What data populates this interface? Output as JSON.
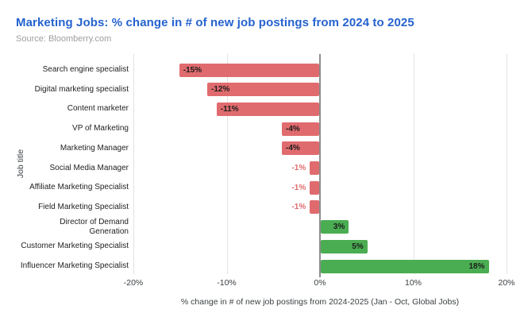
{
  "header": {
    "title": "Marketing Jobs: % change in # of new job postings from 2024 to 2025",
    "source": "Source: Bloomberry.com"
  },
  "chart_data": {
    "type": "bar",
    "orientation": "horizontal",
    "title": "Marketing Jobs: % change in # of new job postings from 2024 to 2025",
    "subtitle": "Source: Bloomberry.com",
    "categories": [
      "Search engine specialist",
      "Digital marketing specialist",
      "Content marketer",
      "VP of Marketing",
      "Marketing Manager",
      "Social Media Manager",
      "Affiliate Marketing Specialist",
      "Field Marketing Specialist",
      "Director of Demand\nGeneration",
      "Customer Marketing Specialist",
      "Influencer Marketing Specialist"
    ],
    "values": [
      -15,
      -12,
      -11,
      -4,
      -4,
      -1,
      -1,
      -1,
      3,
      5,
      18
    ],
    "value_labels": [
      "-15%",
      "-12%",
      "-11%",
      "-4%",
      "-4%",
      "-1%",
      "-1%",
      "-1%",
      "3%",
      "5%",
      "18%"
    ],
    "xlabel": "% change in # of new job postings from 2024-2025 (Jan - Oct, Global Jobs)",
    "ylabel": "Job title",
    "xlim": [
      -20,
      20
    ],
    "x_ticks": [
      -20,
      -10,
      0,
      10,
      20
    ],
    "x_tick_labels": [
      "-20%",
      "-10%",
      "0%",
      "10%",
      "20%"
    ],
    "grid": true,
    "legend": "none",
    "colors": {
      "negative_bar": "#e06b6e",
      "positive_bar": "#4aad52",
      "title": "#2563cf",
      "source_text": "#9e9e9e"
    }
  }
}
